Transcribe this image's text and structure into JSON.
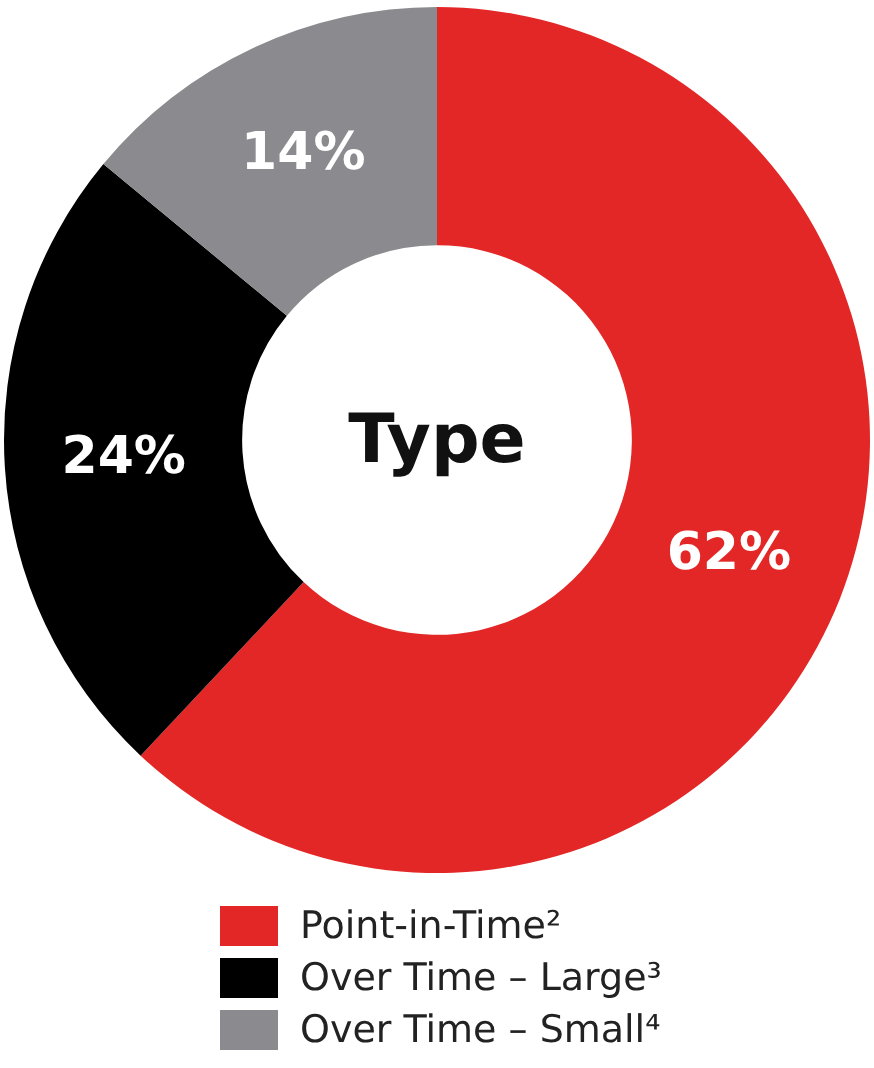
{
  "chart_data": {
    "type": "donut",
    "title": "Type",
    "categories": [
      "Point-in-Time²",
      "Over Time – Large³",
      "Over Time – Small⁴"
    ],
    "values": [
      62,
      24,
      14
    ],
    "colors": [
      "#e32726",
      "#000000",
      "#8b8b8f"
    ],
    "value_labels": [
      "62%",
      "24%",
      "14%"
    ],
    "legend": "bottom"
  }
}
